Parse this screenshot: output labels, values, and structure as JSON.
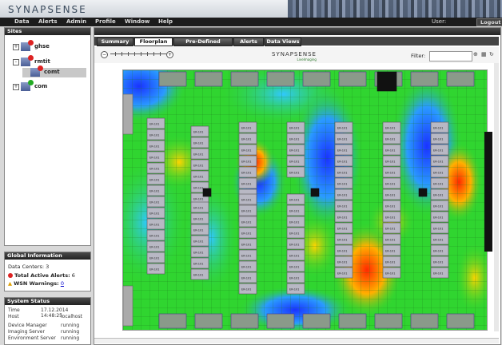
{
  "app": {
    "logo": "SYNAPSENSE"
  },
  "menu": {
    "items": [
      "Data",
      "Alerts",
      "Admin",
      "Profile",
      "Window",
      "Help"
    ],
    "user": "User:",
    "logout": "Logout"
  },
  "sites": {
    "title": "Sites",
    "nodes": [
      {
        "label": "ghse",
        "expander": "+",
        "status": "alert"
      },
      {
        "label": "rmtit",
        "expander": "-",
        "status": "alert"
      },
      {
        "label": "comt",
        "status": "alert",
        "child": true
      },
      {
        "label": "com",
        "expander": "+",
        "status": "ok"
      }
    ]
  },
  "global": {
    "title": "Global Information",
    "data_centers": "Data Centers: 3",
    "active_alerts_label": "Total Active Alerts:",
    "active_alerts_value": "6",
    "wsn_label": "WSN Warnings:",
    "wsn_value": "0"
  },
  "system": {
    "title": "System Status",
    "rows": [
      {
        "k": "Time",
        "v": "17.12.2014 14:48:25"
      },
      {
        "k": "Host",
        "v": "localhost"
      },
      {
        "k": "Device Manager",
        "v": "running"
      },
      {
        "k": "Imaging Server",
        "v": "running"
      },
      {
        "k": "Environment Server",
        "v": "running"
      }
    ]
  },
  "tabs": [
    "Summary",
    "Floorplan",
    "Pre-Defined Metrics",
    "Alerts",
    "Data Views"
  ],
  "active_tab": 1,
  "toolbar": {
    "brand": "SYNAPSENSE",
    "brand_sub": "LiveImaging",
    "filter_label": "Filter:",
    "filter_value": "",
    "zoom_minus": "−",
    "zoom_plus": "+",
    "zoom_level": 0
  },
  "floor": {
    "rack_label": "ER-101"
  },
  "colors": {
    "heat_cool": "#1a33ff",
    "heat_mid": "#30d530",
    "heat_hot": "#ff2a00",
    "rack": "#b8b8c4"
  }
}
